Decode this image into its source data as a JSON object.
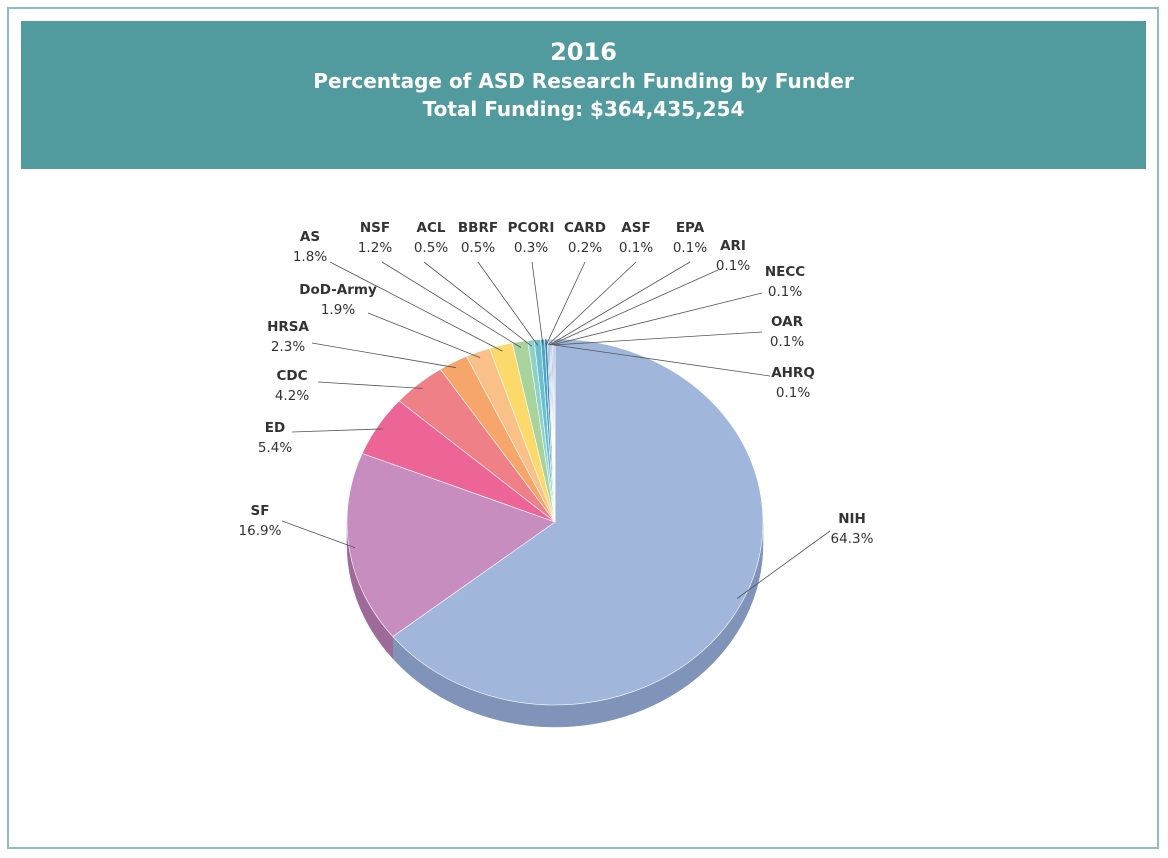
{
  "header": {
    "year": "2016",
    "title": "Percentage of ASD Research Funding by Funder",
    "subtitle": "Total Funding: $364,435,254"
  },
  "chart_data": {
    "type": "pie",
    "title": "2016",
    "subtitle": "Percentage of ASD Research Funding by Funder",
    "total_label": "Total Funding: $364,435,254",
    "unit": "%",
    "slices": [
      {
        "name": "NIH",
        "label": "64.3%",
        "value": 64.3,
        "color": "#a0b6db",
        "side": "#7f94b8"
      },
      {
        "name": "SF",
        "label": "16.9%",
        "value": 16.9,
        "color": "#c78dbf",
        "side": "#9e6b98"
      },
      {
        "name": "ED",
        "label": "5.4%",
        "value": 5.4,
        "color": "#ec6596",
        "side": "#bf4d77"
      },
      {
        "name": "CDC",
        "label": "4.2%",
        "value": 4.2,
        "color": "#ef8088",
        "side": "#c2636a"
      },
      {
        "name": "HRSA",
        "label": "2.3%",
        "value": 2.3,
        "color": "#f6a66a",
        "side": "#cc8550"
      },
      {
        "name": "DoD-Army",
        "label": "1.9%",
        "value": 1.9,
        "color": "#f9c087",
        "side": "#d19f6c"
      },
      {
        "name": "AS",
        "label": "1.8%",
        "value": 1.8,
        "color": "#fbd96a",
        "side": "#d3b552"
      },
      {
        "name": "NSF",
        "label": "1.2%",
        "value": 1.2,
        "color": "#a9d39c",
        "side": "#86ad7b"
      },
      {
        "name": "ACL",
        "label": "0.5%",
        "value": 0.5,
        "color": "#8fd1c7",
        "side": "#6faa9f"
      },
      {
        "name": "BBRF",
        "label": "0.5%",
        "value": 0.5,
        "color": "#6cbfcf",
        "side": "#529aa8"
      },
      {
        "name": "PCORI",
        "label": "0.3%",
        "value": 0.3,
        "color": "#4aa6c4",
        "side": "#38849d"
      },
      {
        "name": "CARD",
        "label": "0.2%",
        "value": 0.2,
        "color": "#3a86b5",
        "side": "#2b6890"
      },
      {
        "name": "ASF",
        "label": "0.1%",
        "value": 0.1,
        "color": "#5f8fc6",
        "side": "#4770a0"
      },
      {
        "name": "EPA",
        "label": "0.1%",
        "value": 0.1,
        "color": "#7a9fcf",
        "side": "#5b7eaa"
      },
      {
        "name": "ARI",
        "label": "0.1%",
        "value": 0.1,
        "color": "#8fb0d8",
        "side": "#6e8cb3"
      },
      {
        "name": "NECC",
        "label": "0.1%",
        "value": 0.1,
        "color": "#7f97c8",
        "side": "#6077a3"
      },
      {
        "name": "OAR",
        "label": "0.1%",
        "value": 0.1,
        "color": "#9aaad3",
        "side": "#7987ad"
      },
      {
        "name": "AHRQ",
        "label": "0.1%",
        "value": 0.1,
        "color": "#a5b4da",
        "side": "#8290b4"
      }
    ]
  }
}
